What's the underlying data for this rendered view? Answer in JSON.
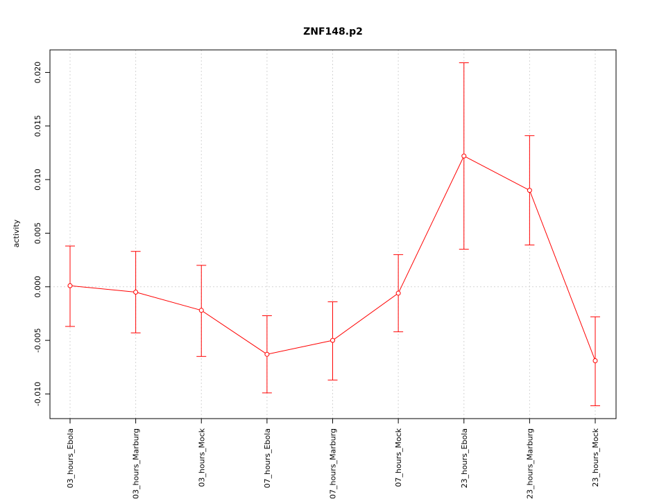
{
  "chart_data": {
    "type": "line",
    "title": "ZNF148.p2",
    "xlabel": "",
    "ylabel": "activity",
    "categories": [
      "03_hours_Ebola",
      "03_hours_Marburg",
      "03_hours_Mock",
      "07_hours_Ebola",
      "07_hours_Marburg",
      "07_hours_Mock",
      "23_hours_Ebola",
      "23_hours_Marburg",
      "23_hours_Mock"
    ],
    "series": [
      {
        "values": [
          0.0001,
          -0.0005,
          -0.0022,
          -0.0063,
          -0.005,
          -0.0006,
          0.0122,
          0.009,
          -0.0069
        ],
        "error_low": [
          -0.0037,
          -0.0043,
          -0.0065,
          -0.0099,
          -0.0087,
          -0.0042,
          0.0035,
          0.0039,
          -0.0111
        ],
        "error_high": [
          0.0038,
          0.0033,
          0.002,
          -0.0027,
          -0.0014,
          0.003,
          0.0209,
          0.0141,
          -0.0028
        ],
        "color": "#ff0000"
      }
    ],
    "yticks": [
      -0.01,
      -0.005,
      0.0,
      0.005,
      0.01,
      0.015,
      0.02
    ],
    "ytick_labels": [
      "-0.010",
      "-0.005",
      "0.000",
      "0.005",
      "0.010",
      "0.015",
      "0.020"
    ],
    "ylim": [
      -0.0123,
      0.0221
    ],
    "grid": true,
    "grid_color": "#d3d3d3",
    "reference_line_y": 0.0
  }
}
